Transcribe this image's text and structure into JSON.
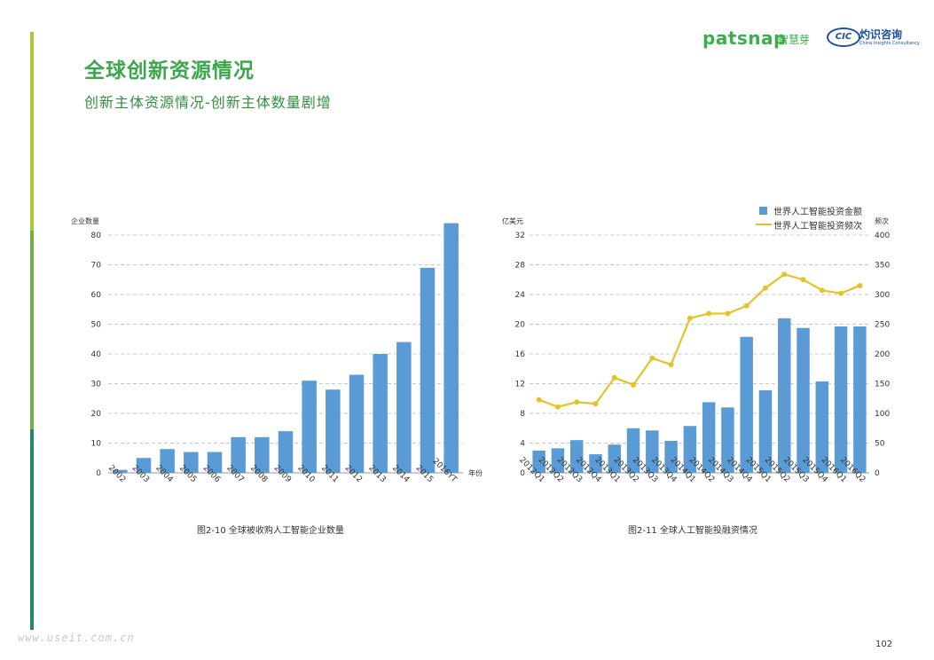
{
  "page": {
    "title": "全球创新资源情况",
    "subtitle": "创新主体资源情况-创新主体数量剧增",
    "brand_patsnap": "patsnap",
    "brand_patsnap_cn": "智慧芽",
    "brand_cic": "CIC",
    "brand_cic_cn": "灼识咨询",
    "brand_cic_en": "China Insights Consultancy",
    "watermark": "www.useit.com.cn",
    "page_number": "102",
    "colors": {
      "bar": "#5b9bd5",
      "line": "#e3c22a",
      "title": "#3aa84a"
    }
  },
  "chart_data": [
    {
      "type": "bar",
      "caption": "图2-10 全球被收购人工智能企业数量",
      "ylabel": "企业数量",
      "xlabel": "年份",
      "ylim": [
        0,
        80
      ],
      "yticks": [
        0,
        10,
        20,
        30,
        40,
        50,
        60,
        70,
        80
      ],
      "grid": true,
      "categories": [
        "2002",
        "2003",
        "2004",
        "2005",
        "2006",
        "2007",
        "2008",
        "2009",
        "2010",
        "2011",
        "2012",
        "2013",
        "2014",
        "2015",
        "2016YT"
      ],
      "values": [
        1,
        5,
        8,
        7,
        7,
        12,
        12,
        14,
        31,
        28,
        33,
        40,
        44,
        69,
        84
      ]
    },
    {
      "type": "bar+line",
      "caption": "图2-11 全球人工智能投融资情况",
      "ylabel_left": "亿美元",
      "ylabel_right": "频次",
      "ylim_left": [
        0,
        32
      ],
      "ylim_right": [
        0,
        400
      ],
      "yticks_left": [
        0,
        4,
        8,
        12,
        16,
        20,
        24,
        28,
        32
      ],
      "yticks_right": [
        0,
        50,
        100,
        150,
        200,
        250,
        300,
        350,
        400
      ],
      "grid": true,
      "legend_position": "top-right",
      "categories": [
        "2012Q1",
        "2012Q2",
        "2012Q3",
        "2012Q4",
        "2013Q1",
        "2013Q2",
        "2013Q3",
        "2013Q4",
        "2014Q1",
        "2014Q2",
        "2014Q3",
        "2014Q4",
        "2015Q1",
        "2015Q2",
        "2015Q3",
        "2015Q4",
        "2016Q1",
        "2016Q2"
      ],
      "series": [
        {
          "name": "世界人工智能投资金额",
          "kind": "bar",
          "axis": "left",
          "values": [
            3.0,
            3.3,
            4.4,
            2.5,
            3.8,
            6.0,
            5.7,
            4.3,
            6.3,
            9.5,
            8.8,
            18.3,
            11.1,
            20.8,
            19.5,
            12.3,
            19.7,
            19.7
          ]
        },
        {
          "name": "世界人工智能投资频次",
          "kind": "line",
          "axis": "right",
          "values": [
            123,
            111,
            119,
            116,
            160,
            148,
            193,
            182,
            260,
            268,
            268,
            281,
            311,
            334,
            325,
            307,
            302,
            315
          ]
        }
      ]
    }
  ]
}
